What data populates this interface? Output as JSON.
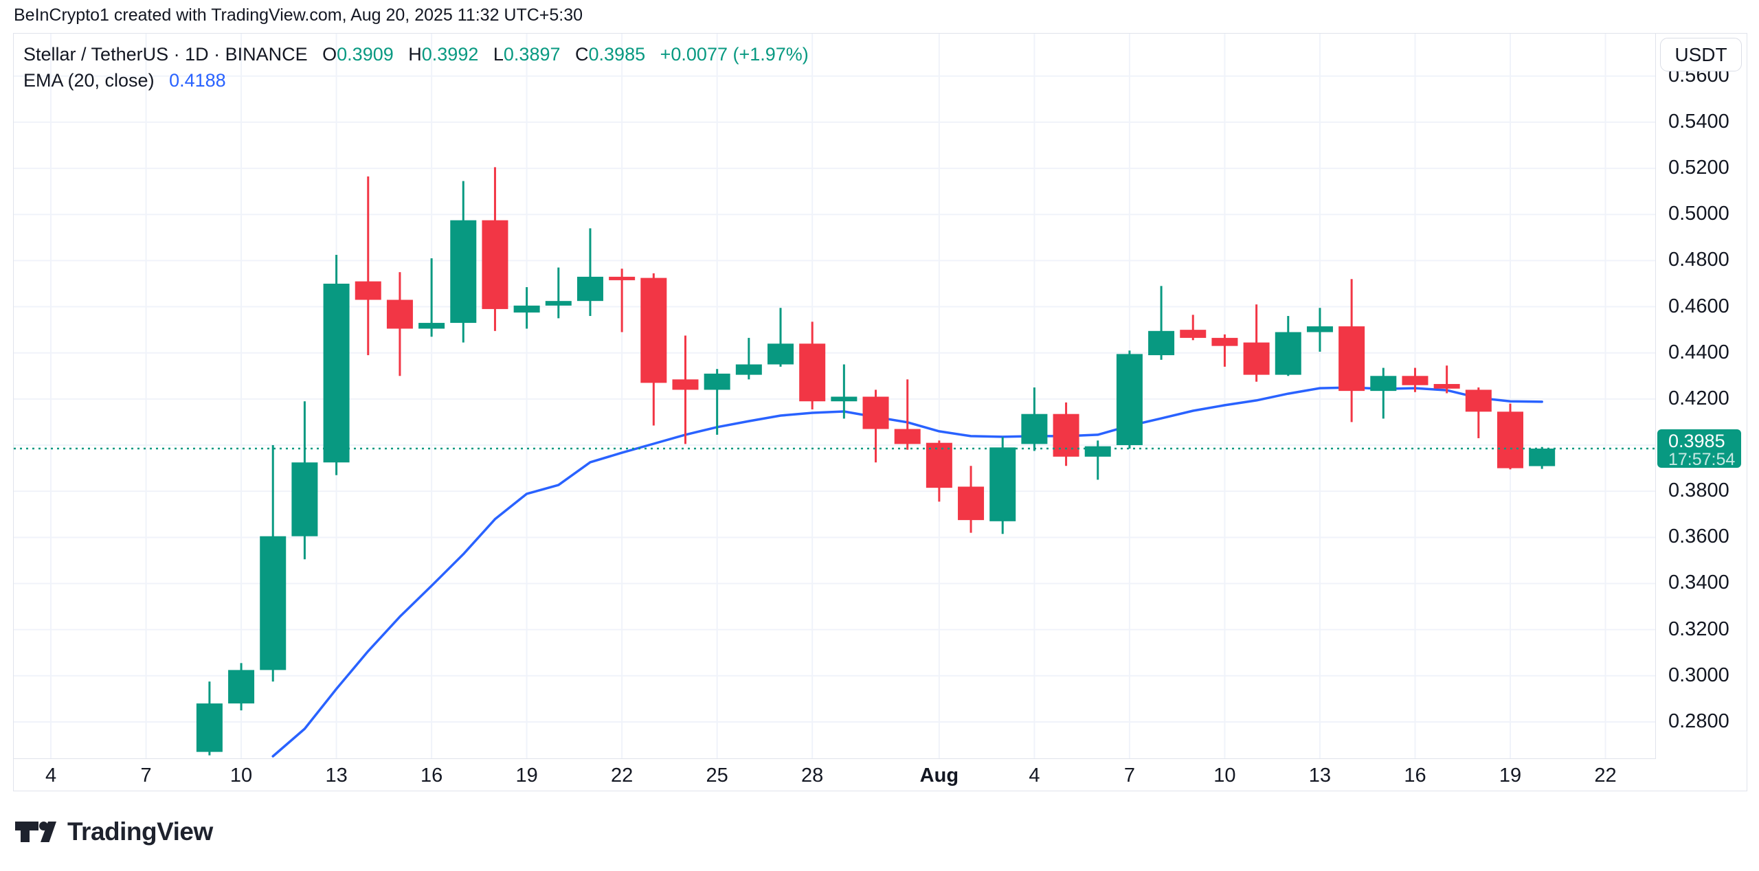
{
  "watermark": "BeInCrypto1 created with TradingView.com, Aug 20, 2025 11:32 UTC+5:30",
  "legend": {
    "title": "Stellar / TetherUS · 1D · BINANCE",
    "ohlc": [
      {
        "label": "O",
        "value": "0.3909"
      },
      {
        "label": "H",
        "value": "0.3992"
      },
      {
        "label": "L",
        "value": "0.3897"
      },
      {
        "label": "C",
        "value": "0.3985"
      }
    ],
    "change": "+0.0077 (+1.97%)",
    "indicator_label": "EMA (20, close)",
    "indicator_value": "0.4188"
  },
  "currency_button": "USDT",
  "price_scale": {
    "labels": [
      "0.5600",
      "0.5400",
      "0.5200",
      "0.5000",
      "0.4800",
      "0.4600",
      "0.4400",
      "0.4200",
      "0.3800",
      "0.3600",
      "0.3400",
      "0.3200",
      "0.3000",
      "0.2800"
    ],
    "last_price": {
      "value": "0.3985",
      "countdown": "17:57:54"
    }
  },
  "time_scale": {
    "ticks": [
      {
        "label": "4",
        "day_index": -5
      },
      {
        "label": "7",
        "day_index": -2
      },
      {
        "label": "10",
        "day_index": 1
      },
      {
        "label": "13",
        "day_index": 4
      },
      {
        "label": "16",
        "day_index": 7
      },
      {
        "label": "19",
        "day_index": 10
      },
      {
        "label": "22",
        "day_index": 13
      },
      {
        "label": "25",
        "day_index": 16
      },
      {
        "label": "28",
        "day_index": 19
      },
      {
        "label": "Aug",
        "day_index": 23,
        "bold": true
      },
      {
        "label": "4",
        "day_index": 26
      },
      {
        "label": "7",
        "day_index": 29
      },
      {
        "label": "10",
        "day_index": 32
      },
      {
        "label": "13",
        "day_index": 35
      },
      {
        "label": "16",
        "day_index": 38
      },
      {
        "label": "19",
        "day_index": 41
      },
      {
        "label": "22",
        "day_index": 44
      }
    ]
  },
  "chart_data": {
    "type": "candlestick",
    "title": "Stellar / TetherUS 1D BINANCE with EMA(20) overlay",
    "ylim": [
      0.2642,
      0.5784
    ],
    "xlim_day_index": [
      -6.17,
      45.57
    ],
    "grid_prices": [
      0.56,
      0.54,
      0.52,
      0.5,
      0.48,
      0.46,
      0.44,
      0.42,
      0.4,
      0.38,
      0.36,
      0.34,
      0.32,
      0.3,
      0.28
    ],
    "last_price": 0.3985,
    "dates": [
      "Jul 9",
      "Jul 10",
      "Jul 11",
      "Jul 12",
      "Jul 13",
      "Jul 14",
      "Jul 15",
      "Jul 16",
      "Jul 17",
      "Jul 18",
      "Jul 19",
      "Jul 20",
      "Jul 21",
      "Jul 22",
      "Jul 23",
      "Jul 24",
      "Jul 25",
      "Jul 26",
      "Jul 27",
      "Jul 28",
      "Jul 29",
      "Jul 30",
      "Jul 31",
      "Aug 1",
      "Aug 2",
      "Aug 3",
      "Aug 4",
      "Aug 5",
      "Aug 6",
      "Aug 7",
      "Aug 8",
      "Aug 9",
      "Aug 10",
      "Aug 11",
      "Aug 12",
      "Aug 13",
      "Aug 14",
      "Aug 15",
      "Aug 16",
      "Aug 17",
      "Aug 18",
      "Aug 19",
      "Aug 20"
    ],
    "candles_ohlc": [
      [
        0.267,
        0.2975,
        0.2655,
        0.288
      ],
      [
        0.288,
        0.3055,
        0.285,
        0.3025
      ],
      [
        0.3025,
        0.4,
        0.2975,
        0.3605
      ],
      [
        0.3605,
        0.419,
        0.3505,
        0.3925
      ],
      [
        0.3925,
        0.4825,
        0.387,
        0.47
      ],
      [
        0.471,
        0.5165,
        0.439,
        0.463
      ],
      [
        0.463,
        0.475,
        0.43,
        0.4505
      ],
      [
        0.4505,
        0.481,
        0.447,
        0.453
      ],
      [
        0.453,
        0.5145,
        0.4445,
        0.4975
      ],
      [
        0.4975,
        0.5205,
        0.4495,
        0.459
      ],
      [
        0.4575,
        0.4685,
        0.4505,
        0.4605
      ],
      [
        0.4605,
        0.477,
        0.455,
        0.4625
      ],
      [
        0.4625,
        0.494,
        0.456,
        0.473
      ],
      [
        0.473,
        0.4765,
        0.449,
        0.4715
      ],
      [
        0.4725,
        0.4745,
        0.4085,
        0.427
      ],
      [
        0.4285,
        0.4475,
        0.4005,
        0.424
      ],
      [
        0.424,
        0.433,
        0.4045,
        0.431
      ],
      [
        0.4305,
        0.4465,
        0.4285,
        0.435
      ],
      [
        0.435,
        0.4595,
        0.434,
        0.444
      ],
      [
        0.444,
        0.4535,
        0.4155,
        0.419
      ],
      [
        0.419,
        0.435,
        0.4115,
        0.421
      ],
      [
        0.421,
        0.424,
        0.3925,
        0.407
      ],
      [
        0.407,
        0.4285,
        0.398,
        0.4005
      ],
      [
        0.401,
        0.402,
        0.3755,
        0.3815
      ],
      [
        0.382,
        0.391,
        0.362,
        0.3675
      ],
      [
        0.367,
        0.4035,
        0.3615,
        0.399
      ],
      [
        0.4005,
        0.425,
        0.3975,
        0.4135
      ],
      [
        0.4135,
        0.4185,
        0.391,
        0.395
      ],
      [
        0.395,
        0.402,
        0.385,
        0.3995
      ],
      [
        0.4,
        0.441,
        0.3985,
        0.4395
      ],
      [
        0.439,
        0.469,
        0.437,
        0.4495
      ],
      [
        0.45,
        0.4565,
        0.4455,
        0.4465
      ],
      [
        0.4465,
        0.448,
        0.434,
        0.443
      ],
      [
        0.4445,
        0.461,
        0.4275,
        0.4305
      ],
      [
        0.4305,
        0.456,
        0.43,
        0.449
      ],
      [
        0.449,
        0.4595,
        0.4405,
        0.4515
      ],
      [
        0.4515,
        0.472,
        0.41,
        0.4235
      ],
      [
        0.4235,
        0.4335,
        0.4115,
        0.43
      ],
      [
        0.43,
        0.4335,
        0.423,
        0.426
      ],
      [
        0.4265,
        0.4345,
        0.4225,
        0.4245
      ],
      [
        0.424,
        0.425,
        0.403,
        0.4145
      ],
      [
        0.4145,
        0.418,
        0.3895,
        0.39
      ],
      [
        0.3909,
        0.3992,
        0.3897,
        0.3985
      ]
    ],
    "ema20": [
      null,
      null,
      0.2651,
      0.277,
      0.2943,
      0.3107,
      0.3256,
      0.339,
      0.3527,
      0.3679,
      0.3789,
      0.3827,
      0.3926,
      0.3967,
      0.4006,
      0.4045,
      0.4078,
      0.4104,
      0.4128,
      0.414,
      0.4146,
      0.4122,
      0.4099,
      0.406,
      0.4039,
      0.4036,
      0.4039,
      0.4039,
      0.4045,
      0.4084,
      0.4116,
      0.4149,
      0.4173,
      0.4194,
      0.4223,
      0.4247,
      0.425,
      0.4244,
      0.4247,
      0.4238,
      0.4205,
      0.419,
      0.4188
    ]
  },
  "colors": {
    "up": "#089981",
    "down": "#f23645",
    "ema": "#2962ff",
    "grid": "#f0f3fa",
    "border": "#e0e3eb",
    "text": "#131722",
    "value_green": "#089981",
    "value_blue": "#2962ff",
    "last_price_line": "#089981",
    "badge_bg": "#089981",
    "badge_text": "#ffffff",
    "background": "#ffffff"
  },
  "logo": {
    "brand": "TradingView"
  }
}
